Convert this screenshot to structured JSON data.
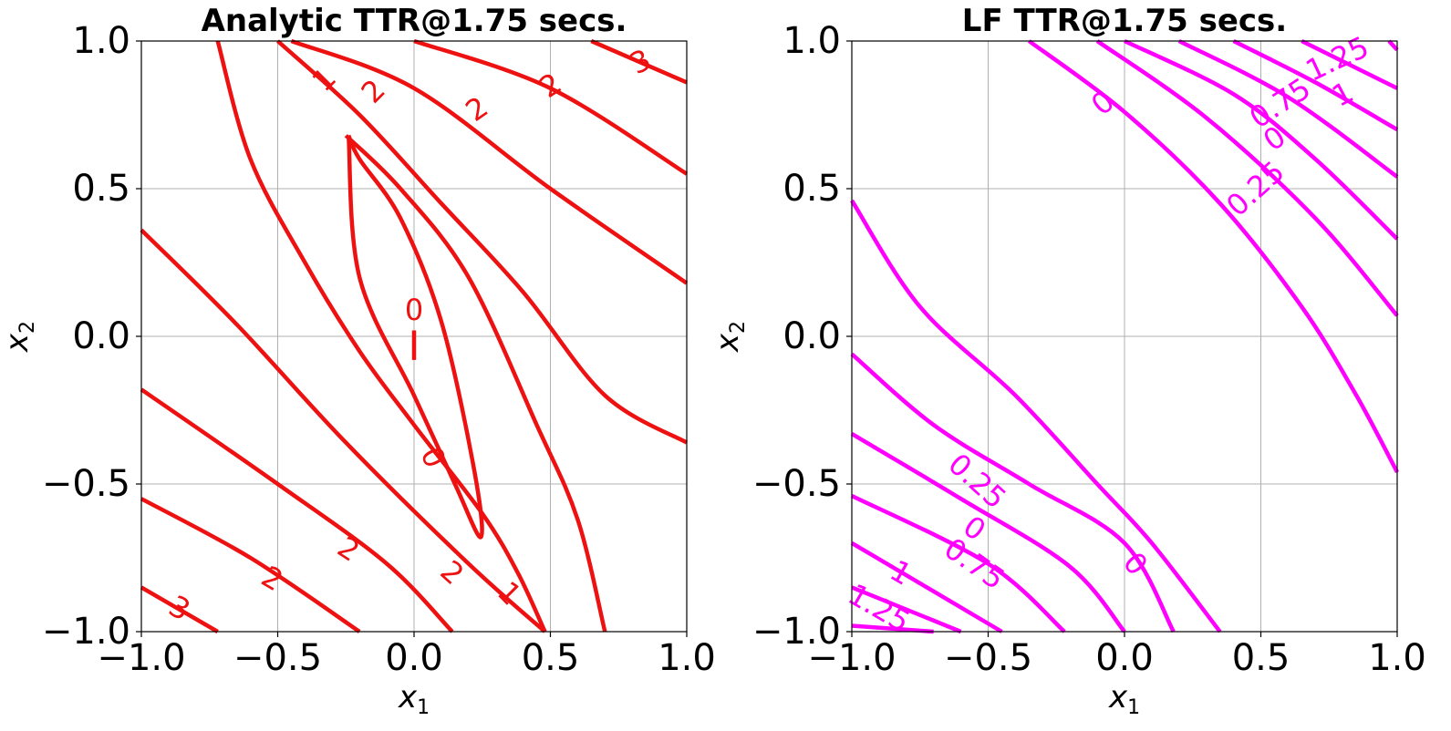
{
  "chart_data": [
    {
      "type": "contour",
      "title": "Analytic TTR@1.75 secs.",
      "xlabel": "x",
      "xlabel_sub": "1",
      "ylabel": "x",
      "ylabel_sub": "2",
      "xlim": [
        -1.0,
        1.0
      ],
      "ylim": [
        -1.0,
        1.0
      ],
      "xticks": [
        "−1.0",
        "−0.5",
        "0.0",
        "0.5",
        "1.0"
      ],
      "yticks": [
        "1.0",
        "0.5",
        "0.0",
        "−0.5",
        "−1.0"
      ],
      "grid": true,
      "line_color": "#ee1111",
      "contours": [
        {
          "level": "3",
          "points": [
            [
              -1.0,
              -0.85
            ],
            [
              -0.72,
              -1.0
            ]
          ]
        },
        {
          "level": "2",
          "points": [
            [
              -1.0,
              -0.55
            ],
            [
              -0.6,
              -0.75
            ],
            [
              -0.2,
              -1.0
            ]
          ]
        },
        {
          "level": "2",
          "points": [
            [
              -1.0,
              -0.18
            ],
            [
              -0.5,
              -0.5
            ],
            [
              -0.1,
              -0.77
            ],
            [
              0.14,
              -1.0
            ]
          ]
        },
        {
          "level": "1",
          "points": [
            [
              -1.0,
              0.36
            ],
            [
              -0.65,
              0.04
            ],
            [
              -0.25,
              -0.36
            ],
            [
              0.2,
              -0.77
            ],
            [
              0.48,
              -1.0
            ]
          ]
        },
        {
          "level": "0",
          "points": [
            [
              -0.24,
              0.68
            ],
            [
              -0.2,
              0.6
            ],
            [
              -0.05,
              0.4
            ],
            [
              0.1,
              0.05
            ],
            [
              0.22,
              -0.45
            ],
            [
              0.245,
              -0.68
            ],
            [
              0.15,
              -0.5
            ],
            [
              0.0,
              -0.2
            ],
            [
              -0.2,
              0.2
            ],
            [
              -0.24,
              0.68
            ]
          ]
        },
        {
          "level": "0",
          "points": [
            [
              0.0,
              0.02
            ],
            [
              0.0,
              -0.08
            ]
          ]
        },
        {
          "level": "1",
          "points": [
            [
              -0.72,
              1.0
            ],
            [
              -0.6,
              0.6
            ],
            [
              -0.4,
              0.25
            ],
            [
              -0.2,
              -0.05
            ],
            [
              0.0,
              -0.3
            ],
            [
              0.25,
              -0.6
            ],
            [
              0.38,
              -0.8
            ],
            [
              0.48,
              -1.0
            ]
          ]
        },
        {
          "level": "",
          "points": [
            [
              -0.25,
              0.68
            ],
            [
              -0.05,
              0.5
            ],
            [
              0.2,
              0.2
            ],
            [
              0.45,
              -0.3
            ],
            [
              0.6,
              -0.62
            ],
            [
              0.7,
              -1.0
            ]
          ]
        },
        {
          "level": "2",
          "points": [
            [
              -0.5,
              1.0
            ],
            [
              -0.2,
              0.75
            ],
            [
              0.1,
              0.45
            ],
            [
              0.4,
              0.15
            ],
            [
              0.7,
              -0.2
            ],
            [
              1.0,
              -0.36
            ]
          ]
        },
        {
          "level": "2",
          "points": [
            [
              -0.45,
              1.0
            ],
            [
              0.0,
              0.84
            ],
            [
              0.5,
              0.5
            ],
            [
              1.0,
              0.18
            ]
          ]
        },
        {
          "level": "2",
          "points": [
            [
              0.0,
              1.0
            ],
            [
              0.5,
              0.84
            ],
            [
              1.0,
              0.55
            ]
          ]
        },
        {
          "level": "3",
          "points": [
            [
              0.65,
              1.0
            ],
            [
              1.0,
              0.86
            ]
          ]
        }
      ],
      "contour_labels": [
        {
          "text": "3",
          "x": -0.86,
          "y": -0.92,
          "angle": 28
        },
        {
          "text": "2",
          "x": -0.52,
          "y": -0.82,
          "angle": 30
        },
        {
          "text": "2",
          "x": -0.24,
          "y": -0.72,
          "angle": 33
        },
        {
          "text": "2",
          "x": 0.14,
          "y": -0.8,
          "angle": 42
        },
        {
          "text": "1",
          "x": 0.35,
          "y": -0.87,
          "angle": 45
        },
        {
          "text": "0",
          "x": 0.07,
          "y": -0.41,
          "angle": 65
        },
        {
          "text": "0",
          "x": 0.0,
          "y": 0.09,
          "angle": 0
        },
        {
          "text": "1",
          "x": -0.33,
          "y": 0.87,
          "angle": -45
        },
        {
          "text": "2",
          "x": -0.15,
          "y": 0.83,
          "angle": -45
        },
        {
          "text": "2",
          "x": 0.23,
          "y": 0.77,
          "angle": -35
        },
        {
          "text": "2",
          "x": 0.5,
          "y": 0.85,
          "angle": -33
        },
        {
          "text": "3",
          "x": 0.83,
          "y": 0.93,
          "angle": -26
        }
      ]
    },
    {
      "type": "contour",
      "title": "LF TTR@1.75 secs.",
      "xlabel": "x",
      "xlabel_sub": "1",
      "ylabel": "x",
      "ylabel_sub": "2",
      "xlim": [
        -1.0,
        1.0
      ],
      "ylim": [
        -1.0,
        1.0
      ],
      "xticks": [
        "−1.0",
        "−0.5",
        "0.0",
        "0.5",
        "1.0"
      ],
      "yticks": [
        "1.0",
        "0.5",
        "0.0",
        "−0.5",
        "−1.0"
      ],
      "grid": true,
      "line_color": "#ff00ff",
      "contours": [
        {
          "level": "1.25",
          "points": [
            [
              -1.0,
              -0.98
            ],
            [
              -0.7,
              -1.0
            ]
          ]
        },
        {
          "level": "1",
          "points": [
            [
              -1.0,
              -0.85
            ],
            [
              -0.6,
              -1.0
            ]
          ]
        },
        {
          "level": "1",
          "points": [
            [
              -1.0,
              -0.7
            ],
            [
              -0.45,
              -1.0
            ]
          ]
        },
        {
          "level": "0.75",
          "points": [
            [
              -1.0,
              -0.54
            ],
            [
              -0.5,
              -0.77
            ],
            [
              -0.22,
              -1.0
            ]
          ]
        },
        {
          "level": "0",
          "points": [
            [
              -1.0,
              -0.33
            ],
            [
              -0.6,
              -0.55
            ],
            [
              -0.2,
              -0.78
            ],
            [
              0.0,
              -1.0
            ]
          ]
        },
        {
          "level": "0.25",
          "points": [
            [
              -1.0,
              -0.06
            ],
            [
              -0.7,
              -0.3
            ],
            [
              -0.35,
              -0.5
            ],
            [
              0.0,
              -0.7
            ],
            [
              0.18,
              -1.0
            ]
          ]
        },
        {
          "level": "0",
          "points": [
            [
              -1.0,
              0.46
            ],
            [
              -0.75,
              0.1
            ],
            [
              -0.4,
              -0.2
            ],
            [
              -0.1,
              -0.5
            ],
            [
              0.1,
              -0.7
            ],
            [
              0.35,
              -1.0
            ]
          ]
        },
        {
          "level": "0",
          "points": [
            [
              -0.35,
              1.0
            ],
            [
              0.0,
              0.76
            ],
            [
              0.35,
              0.45
            ],
            [
              0.65,
              0.1
            ],
            [
              0.85,
              -0.2
            ],
            [
              1.0,
              -0.46
            ]
          ]
        },
        {
          "level": "0.25",
          "points": [
            [
              -0.1,
              1.0
            ],
            [
              0.3,
              0.74
            ],
            [
              0.7,
              0.4
            ],
            [
              1.0,
              0.07
            ]
          ]
        },
        {
          "level": "0",
          "points": [
            [
              0.0,
              1.0
            ],
            [
              0.4,
              0.82
            ],
            [
              0.7,
              0.6
            ],
            [
              1.0,
              0.33
            ]
          ]
        },
        {
          "level": "0.75",
          "points": [
            [
              0.2,
              1.0
            ],
            [
              0.6,
              0.81
            ],
            [
              1.0,
              0.54
            ]
          ]
        },
        {
          "level": "1",
          "points": [
            [
              0.4,
              1.0
            ],
            [
              0.7,
              0.86
            ],
            [
              1.0,
              0.7
            ]
          ]
        },
        {
          "level": "1.25",
          "points": [
            [
              0.65,
              1.0
            ],
            [
              1.0,
              0.84
            ]
          ]
        },
        {
          "level": "",
          "points": [
            [
              0.97,
              1.0
            ],
            [
              1.0,
              0.97
            ]
          ]
        }
      ],
      "contour_labels": [
        {
          "text": "1.25",
          "x": -0.9,
          "y": -0.92,
          "angle": 30
        },
        {
          "text": "1",
          "x": -0.82,
          "y": -0.8,
          "angle": 30
        },
        {
          "text": "0.75",
          "x": -0.55,
          "y": -0.77,
          "angle": 35
        },
        {
          "text": "0",
          "x": -0.55,
          "y": -0.65,
          "angle": 35
        },
        {
          "text": "0.25",
          "x": -0.54,
          "y": -0.49,
          "angle": 42
        },
        {
          "text": "0",
          "x": 0.04,
          "y": -0.77,
          "angle": 50
        },
        {
          "text": "0",
          "x": -0.08,
          "y": 0.79,
          "angle": -40
        },
        {
          "text": "0.25",
          "x": 0.48,
          "y": 0.5,
          "angle": -42
        },
        {
          "text": "0",
          "x": 0.55,
          "y": 0.67,
          "angle": -35
        },
        {
          "text": "0.75",
          "x": 0.57,
          "y": 0.79,
          "angle": -33
        },
        {
          "text": "1",
          "x": 0.8,
          "y": 0.82,
          "angle": -28
        },
        {
          "text": "1.25",
          "x": 0.78,
          "y": 0.94,
          "angle": -25
        }
      ]
    }
  ]
}
